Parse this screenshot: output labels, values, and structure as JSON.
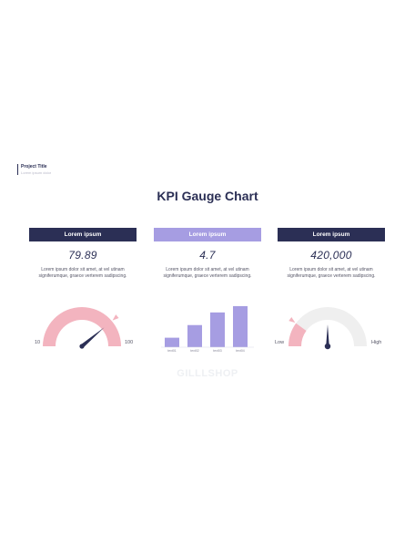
{
  "project": {
    "title": "Project Title",
    "subtitle": "Lorem ipsum dolor"
  },
  "page_title": "KPI Gauge Chart",
  "watermark": "GILLLSHOP",
  "colors": {
    "navy": "#2b2f55",
    "lavender": "#a69de2",
    "pink": "#f3b4bf",
    "grey": "#efefef"
  },
  "cards": [
    {
      "header": "Lorem ipsum",
      "value": "79.89",
      "description": "Lorem ipsum dolor sit amet, at vel utinam signiferumque, graece verterem sadipscing."
    },
    {
      "header": "Lorem ipsum",
      "value": "4.7",
      "description": "Lorem ipsum dolor sit amet, at vel utinam signiferumque, graece verterem sadipscing."
    },
    {
      "header": "Lorem ipsum",
      "value": "420,000",
      "description": "Lorem ipsum dolor sit amet, at vel utinam signiferumque, graece verterem sadipscing."
    }
  ],
  "chart_data": [
    {
      "type": "gauge",
      "min": 10,
      "max": 100,
      "min_label": "10",
      "max_label": "100",
      "value": 79.89
    },
    {
      "type": "bar",
      "categories": [
        "text01",
        "text02",
        "text03",
        "text04"
      ],
      "values": [
        1.2,
        2.8,
        4.4,
        5.2
      ],
      "ylim": [
        0,
        6
      ]
    },
    {
      "type": "gauge",
      "min_label": "Low",
      "max_label": "High",
      "level": 0.2
    }
  ]
}
